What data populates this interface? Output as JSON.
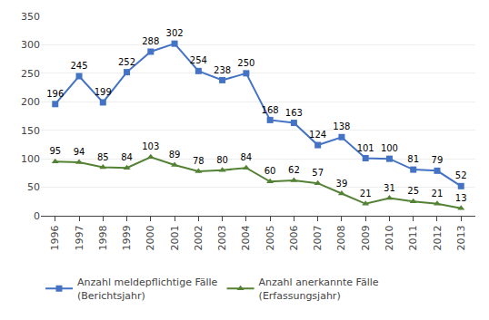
{
  "chart_data": {
    "type": "line",
    "x": [
      1996,
      1997,
      1998,
      1999,
      2000,
      2001,
      2002,
      2003,
      2004,
      2005,
      2006,
      2007,
      2008,
      2009,
      2010,
      2011,
      2012,
      2013
    ],
    "series": [
      {
        "name": "Anzahl meldepflichtige Fälle\n(Berichtsjahr)",
        "color": "#4472C4",
        "marker": "square",
        "values": [
          196,
          245,
          199,
          252,
          288,
          302,
          254,
          238,
          250,
          168,
          163,
          124,
          138,
          101,
          100,
          81,
          79,
          52
        ]
      },
      {
        "name": "Anzahl anerkannte Fälle\n(Erfassungsjahr)",
        "color": "#548235",
        "marker": "triangle-up",
        "values": [
          95,
          94,
          85,
          84,
          103,
          89,
          78,
          80,
          84,
          60,
          62,
          57,
          39,
          21,
          31,
          25,
          21,
          13
        ]
      }
    ],
    "xlim": [
      1995.4,
      2013.6
    ],
    "xticks": [
      1996,
      1997,
      1998,
      1999,
      2000,
      2001,
      2002,
      2003,
      2004,
      2005,
      2006,
      2007,
      2008,
      2009,
      2010,
      2011,
      2012,
      2013
    ],
    "ylim": [
      0,
      350
    ],
    "yticks": [
      0,
      50,
      100,
      150,
      200,
      250,
      300,
      350
    ],
    "grid": "y",
    "data_labels": true,
    "legend": "bottom"
  }
}
